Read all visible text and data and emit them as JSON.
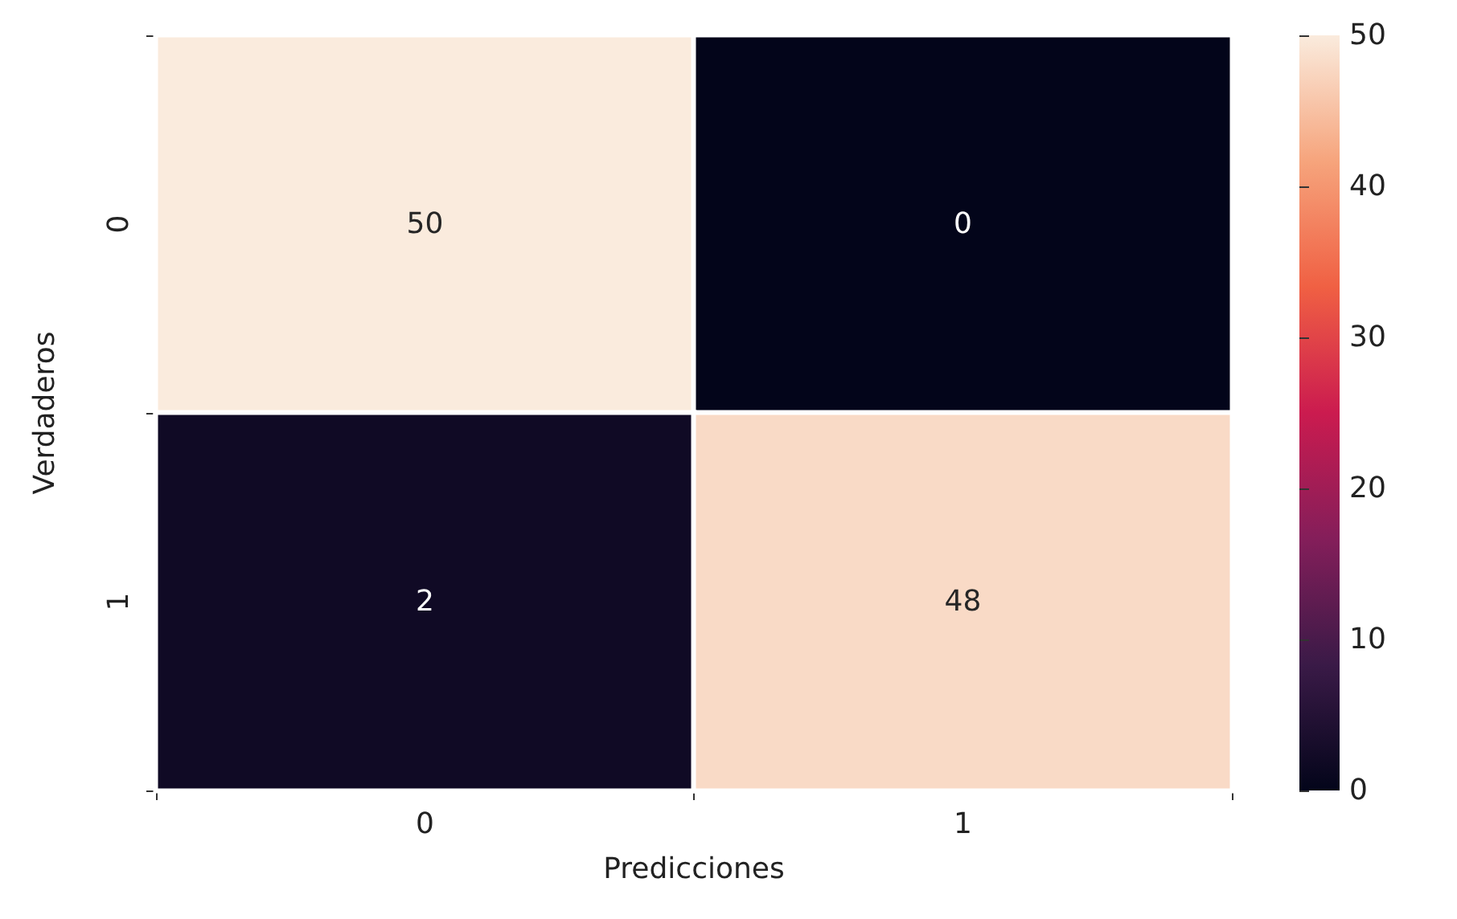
{
  "chart_data": {
    "type": "heatmap",
    "xlabel": "Predicciones",
    "ylabel": "Verdaderos",
    "categories": [
      "0",
      "1"
    ],
    "y_categories": [
      "0",
      "1"
    ],
    "cells": [
      [
        50,
        0
      ],
      [
        2,
        48
      ]
    ],
    "data_labels": true,
    "clim": [
      0,
      50
    ],
    "cticks": [
      0,
      10,
      20,
      30,
      40,
      50
    ]
  }
}
